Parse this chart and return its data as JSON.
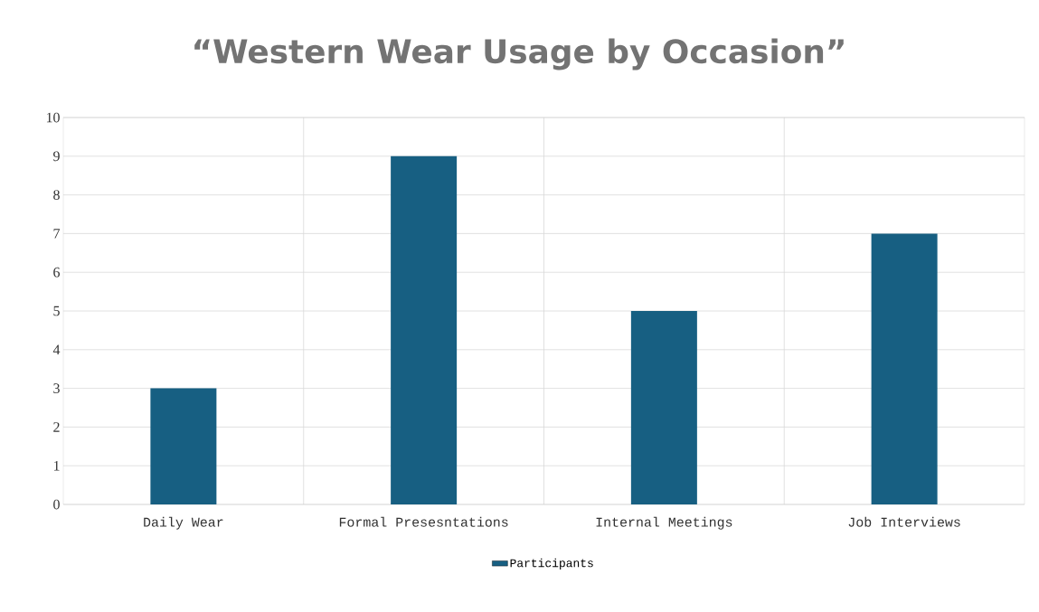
{
  "chart_data": {
    "type": "bar",
    "title": "“Western Wear Usage by Occasion”",
    "categories": [
      "Daily Wear",
      "Formal Presesntations",
      "Internal Meetings",
      "Job Interviews"
    ],
    "series": [
      {
        "name": "Participants",
        "color": "#175f82",
        "values": [
          3,
          9,
          5,
          7
        ]
      }
    ],
    "ylim": [
      0,
      10
    ],
    "yticks": [
      0,
      1,
      2,
      3,
      4,
      5,
      6,
      7,
      8,
      9,
      10
    ],
    "grid": true,
    "legend": "bottom"
  }
}
